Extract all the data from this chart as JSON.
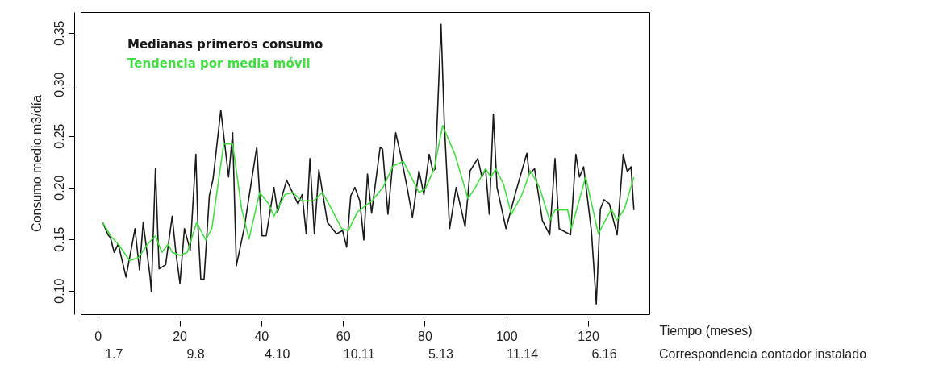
{
  "chart_data": {
    "type": "line",
    "xlabel": "Tiempo (meses)",
    "ylabel": "Consumo medio m3/día",
    "annotations": [
      "1.7",
      "9.8",
      "4.10",
      "10.11",
      "5.13",
      "11.14",
      "6.16",
      "Correspondencia contador instalado"
    ],
    "xlim": [
      -4.2,
      135
    ],
    "ylim": [
      0.077,
      0.37
    ],
    "xticks": [
      0,
      20,
      40,
      60,
      80,
      100,
      120
    ],
    "yticks": [
      {
        "value": 0.1,
        "label": "0.10"
      },
      0.15,
      {
        "value": 0.2,
        "label": "0.20"
      },
      0.25,
      {
        "value": 0.3,
        "label": "0.30"
      },
      0.35
    ],
    "grid": false,
    "legend": "top left",
    "marker": "none",
    "line_style": "solid",
    "series": [
      {
        "name": "Medianas primeros consumo",
        "color": "#1a1a1a",
        "x": [
          1.2,
          2.5,
          3.1,
          4.0,
          5.0,
          6.9,
          9.1,
          10.2,
          11.1,
          12.8,
          13.1,
          14.1,
          15.0,
          16.6,
          18.2,
          19.1,
          20.1,
          21.2,
          22.6,
          24.0,
          24.5,
          25.2,
          26.0,
          27.3,
          28.2,
          30.1,
          32.0,
          33.0,
          33.9,
          35.8,
          38.9,
          40.2,
          41.2,
          43.1,
          44.0,
          46.2,
          49.0,
          50.0,
          51.0,
          51.9,
          53.0,
          54.1,
          56.2,
          58.4,
          59.9,
          60.9,
          61.9,
          62.9,
          64.1,
          65.1,
          66.0,
          67.0,
          69.1,
          69.7,
          71.0,
          72.9,
          74.1,
          75.7,
          77.0,
          78.6,
          79.8,
          81.1,
          82.0,
          82.6,
          83.3,
          84.0,
          84.8,
          86.1,
          87.7,
          89.9,
          91.1,
          93.0,
          94.0,
          94.9,
          95.8,
          96.8,
          97.7,
          99.9,
          102.4,
          105.0,
          105.6,
          106.9,
          108.8,
          110.6,
          111.9,
          112.9,
          115.7,
          117.0,
          117.9,
          118.9,
          120.8,
          122.0,
          123.0,
          123.9,
          125.2,
          127.1,
          128.6,
          129.6,
          130.5,
          131.2
        ],
        "values": [
          0.166,
          0.154,
          0.151,
          0.137,
          0.145,
          0.113,
          0.16,
          0.12,
          0.166,
          0.113,
          0.099,
          0.218,
          0.121,
          0.125,
          0.172,
          0.137,
          0.107,
          0.16,
          0.139,
          0.232,
          0.163,
          0.111,
          0.111,
          0.192,
          0.208,
          0.275,
          0.21,
          0.253,
          0.124,
          0.16,
          0.239,
          0.153,
          0.153,
          0.2,
          0.176,
          0.207,
          0.184,
          0.193,
          0.155,
          0.228,
          0.155,
          0.217,
          0.166,
          0.155,
          0.158,
          0.142,
          0.192,
          0.2,
          0.187,
          0.149,
          0.213,
          0.175,
          0.239,
          0.237,
          0.174,
          0.253,
          0.232,
          0.2,
          0.171,
          0.216,
          0.193,
          0.232,
          0.216,
          0.218,
          0.289,
          0.358,
          0.263,
          0.16,
          0.2,
          0.162,
          0.216,
          0.228,
          0.21,
          0.218,
          0.174,
          0.271,
          0.2,
          0.16,
          0.197,
          0.233,
          0.213,
          0.218,
          0.168,
          0.154,
          0.228,
          0.16,
          0.154,
          0.232,
          0.21,
          0.22,
          0.158,
          0.087,
          0.179,
          0.188,
          0.184,
          0.154,
          0.232,
          0.215,
          0.22,
          0.178
        ]
      },
      {
        "name": "Tendencia por media móvil",
        "color": "#44dd44",
        "x": [
          1.2,
          3.1,
          5.0,
          7.8,
          10.0,
          12.2,
          14.1,
          15.7,
          17.2,
          18.2,
          20.1,
          21.9,
          24.2,
          26.4,
          27.9,
          30.8,
          33.0,
          35.2,
          37.0,
          39.6,
          41.8,
          43.1,
          45.8,
          47.7,
          49.9,
          52.8,
          55.0,
          57.2,
          59.7,
          61.3,
          63.5,
          67.1,
          69.8,
          72.3,
          74.8,
          76.7,
          78.6,
          80.2,
          82.3,
          84.4,
          87.4,
          90.6,
          92.4,
          94.9,
          96.2,
          97.4,
          99.3,
          101.2,
          103.7,
          105.9,
          108.1,
          110.6,
          111.9,
          115.0,
          115.9,
          119.4,
          122.5,
          125.7,
          127.0,
          128.9,
          131.2
        ],
        "values": [
          0.166,
          0.153,
          0.145,
          0.129,
          0.132,
          0.145,
          0.153,
          0.137,
          0.145,
          0.137,
          0.134,
          0.137,
          0.166,
          0.149,
          0.16,
          0.242,
          0.242,
          0.179,
          0.15,
          0.195,
          0.184,
          0.172,
          0.193,
          0.195,
          0.187,
          0.187,
          0.195,
          0.179,
          0.16,
          0.158,
          0.176,
          0.187,
          0.2,
          0.221,
          0.225,
          0.21,
          0.195,
          0.199,
          0.218,
          0.26,
          0.232,
          0.189,
          0.2,
          0.218,
          0.21,
          0.218,
          0.203,
          0.174,
          0.192,
          0.216,
          0.2,
          0.168,
          0.178,
          0.178,
          0.16,
          0.21,
          0.155,
          0.179,
          0.168,
          0.179,
          0.21
        ]
      }
    ]
  }
}
